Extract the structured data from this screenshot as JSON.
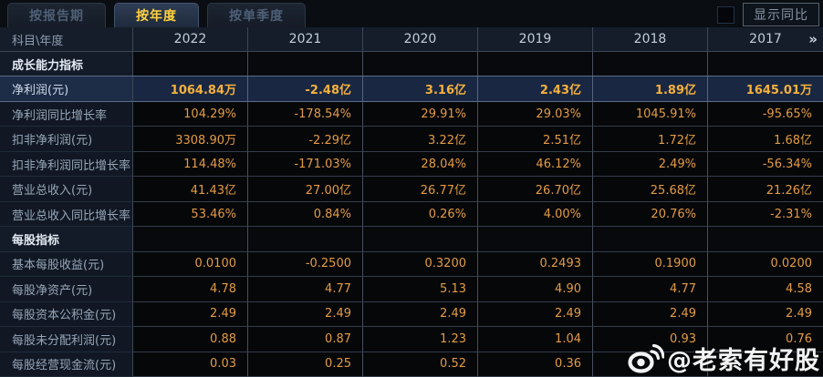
{
  "tabs": [
    {
      "name": "tab-by-report-period",
      "label": "按报告期",
      "active": false
    },
    {
      "name": "tab-by-year",
      "label": "按年度",
      "active": true
    },
    {
      "name": "tab-by-quarter",
      "label": "按单季度",
      "active": false
    }
  ],
  "controls": {
    "show_yoy_label": "显示同比",
    "checkbox_checked": false
  },
  "table": {
    "corner_label": "科目\\年度",
    "years": [
      "2022",
      "2021",
      "2020",
      "2019",
      "2018",
      "2017"
    ],
    "more_icon": "»",
    "rows": [
      {
        "type": "section",
        "label": "成长能力指标",
        "values": [
          "",
          "",
          "",
          "",
          "",
          ""
        ]
      },
      {
        "type": "data",
        "highlight": true,
        "label": "净利润(元)",
        "values": [
          "1064.84万",
          "-2.48亿",
          "3.16亿",
          "2.43亿",
          "1.89亿",
          "1645.01万"
        ]
      },
      {
        "type": "data",
        "label": "净利润同比增长率",
        "values": [
          "104.29%",
          "-178.54%",
          "29.91%",
          "29.03%",
          "1045.91%",
          "-95.65%"
        ]
      },
      {
        "type": "data",
        "label": "扣非净利润(元)",
        "values": [
          "3308.90万",
          "-2.29亿",
          "3.22亿",
          "2.51亿",
          "1.72亿",
          "1.68亿"
        ]
      },
      {
        "type": "data",
        "label": "扣非净利润同比增长率",
        "values": [
          "114.48%",
          "-171.03%",
          "28.04%",
          "46.12%",
          "2.49%",
          "-56.34%"
        ]
      },
      {
        "type": "data",
        "label": "营业总收入(元)",
        "values": [
          "41.43亿",
          "27.00亿",
          "26.77亿",
          "26.70亿",
          "25.68亿",
          "21.26亿"
        ]
      },
      {
        "type": "data",
        "label": "营业总收入同比增长率",
        "values": [
          "53.46%",
          "0.84%",
          "0.26%",
          "4.00%",
          "20.76%",
          "-2.31%"
        ]
      },
      {
        "type": "section",
        "label": "每股指标",
        "values": [
          "",
          "",
          "",
          "",
          "",
          ""
        ]
      },
      {
        "type": "data",
        "label": "基本每股收益(元)",
        "values": [
          "0.0100",
          "-0.2500",
          "0.3200",
          "0.2493",
          "0.1900",
          "0.0200"
        ]
      },
      {
        "type": "data",
        "label": "每股净资产(元)",
        "values": [
          "4.78",
          "4.77",
          "5.13",
          "4.90",
          "4.77",
          "4.58"
        ]
      },
      {
        "type": "data",
        "label": "每股资本公积金(元)",
        "values": [
          "2.49",
          "2.49",
          "2.49",
          "2.49",
          "2.49",
          "2.49"
        ]
      },
      {
        "type": "data",
        "label": "每股未分配利润(元)",
        "values": [
          "0.88",
          "0.87",
          "1.23",
          "1.04",
          "0.93",
          "0.76"
        ]
      },
      {
        "type": "data",
        "label": "每股经营现金流(元)",
        "values": [
          "0.03",
          "0.25",
          "0.52",
          "0.36",
          "",
          ""
        ]
      }
    ]
  },
  "watermark": {
    "text": "@老索有好股",
    "icon": "weibo-icon"
  },
  "colors": {
    "active_tab_text": "#ffd23f",
    "value_text": "#e39b44",
    "highlight_row_bg": "#192742",
    "highlight_value_text": "#f5b13e",
    "header_bg": "#151d2a"
  }
}
